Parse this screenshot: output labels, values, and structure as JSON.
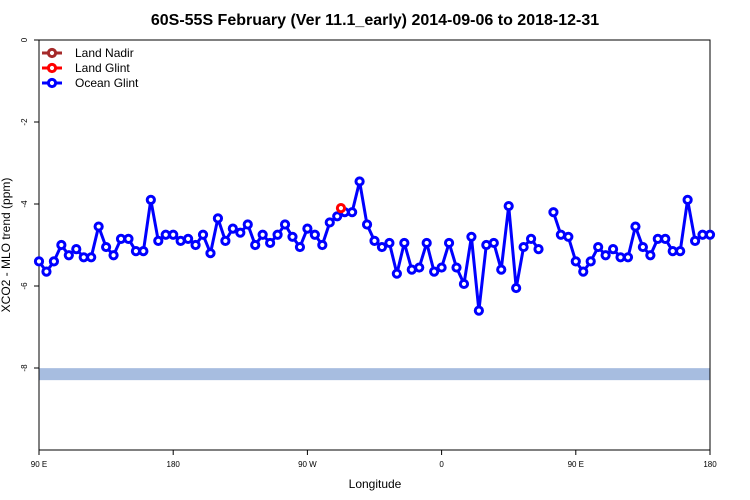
{
  "chart_data": {
    "type": "line",
    "title": "60S-55S February (Ver 11.1_early)   2014-09-06 to 2018-12-31",
    "xlabel": "Longitude",
    "ylabel": "XCO2 - MLO trend (ppm)",
    "xlim": [
      90,
      450
    ],
    "ylim": [
      -10,
      0
    ],
    "x_ticks": [
      {
        "value": 90,
        "label": "90 E"
      },
      {
        "value": 180,
        "label": "180"
      },
      {
        "value": 270,
        "label": "90 W"
      },
      {
        "value": 360,
        "label": "0"
      },
      {
        "value": 450,
        "label": "90 E"
      },
      {
        "value": 540,
        "label": "180"
      }
    ],
    "y_ticks": [
      {
        "value": 0,
        "label": "0"
      },
      {
        "value": -2,
        "label": "-2"
      },
      {
        "value": -4,
        "label": "-4"
      },
      {
        "value": -6,
        "label": "-6"
      },
      {
        "value": -8,
        "label": "-8"
      }
    ],
    "legend_position": "top-left",
    "reference_band": {
      "y": -8.15,
      "color": "#a7bde0"
    },
    "series": [
      {
        "name": "Land Nadir",
        "color": "#a52a2a",
        "segments": []
      },
      {
        "name": "Land Glint",
        "color": "#ff0000",
        "segments": [
          [
            [
              252,
              -4.1
            ]
          ]
        ]
      },
      {
        "name": "Ocean Glint",
        "color": "#0000ff",
        "segments": [
          [
            [
              90,
              -5.4
            ],
            [
              94,
              -5.65
            ],
            [
              98,
              -5.4
            ],
            [
              102,
              -5.0
            ],
            [
              106,
              -5.25
            ],
            [
              110,
              -5.1
            ],
            [
              114,
              -5.3
            ],
            [
              118,
              -5.3
            ],
            [
              122,
              -4.55
            ],
            [
              126,
              -5.05
            ],
            [
              130,
              -5.25
            ],
            [
              134,
              -4.85
            ],
            [
              138,
              -4.85
            ],
            [
              142,
              -5.15
            ],
            [
              146,
              -5.15
            ],
            [
              150,
              -3.9
            ],
            [
              154,
              -4.9
            ],
            [
              158,
              -4.75
            ],
            [
              162,
              -4.75
            ],
            [
              166,
              -4.9
            ],
            [
              170,
              -4.85
            ],
            [
              174,
              -5.0
            ],
            [
              178,
              -4.75
            ],
            [
              182,
              -5.2
            ],
            [
              186,
              -4.35
            ],
            [
              190,
              -4.9
            ],
            [
              194,
              -4.6
            ],
            [
              198,
              -4.7
            ],
            [
              202,
              -4.5
            ],
            [
              206,
              -5.0
            ],
            [
              210,
              -4.75
            ],
            [
              214,
              -4.95
            ],
            [
              218,
              -4.75
            ],
            [
              222,
              -4.5
            ],
            [
              226,
              -4.8
            ],
            [
              230,
              -5.05
            ],
            [
              234,
              -4.6
            ],
            [
              238,
              -4.75
            ],
            [
              242,
              -5.0
            ],
            [
              246,
              -4.45
            ],
            [
              250,
              -4.3
            ],
            [
              254,
              -4.2
            ],
            [
              258,
              -4.2
            ],
            [
              262,
              -3.45
            ],
            [
              266,
              -4.5
            ],
            [
              270,
              -4.9
            ],
            [
              274,
              -5.05
            ],
            [
              278,
              -4.95
            ],
            [
              282,
              -5.7
            ],
            [
              286,
              -4.95
            ],
            [
              290,
              -5.6
            ],
            [
              294,
              -5.55
            ],
            [
              298,
              -4.95
            ],
            [
              302,
              -5.65
            ],
            [
              306,
              -5.55
            ],
            [
              310,
              -4.95
            ],
            [
              314,
              -5.55
            ],
            [
              318,
              -5.95
            ],
            [
              322,
              -4.8
            ],
            [
              326,
              -6.6
            ],
            [
              330,
              -5.0
            ],
            [
              334,
              -4.95
            ],
            [
              338,
              -5.6
            ],
            [
              342,
              -4.05
            ],
            [
              346,
              -6.05
            ],
            [
              350,
              -5.05
            ],
            [
              354,
              -4.85
            ],
            [
              358,
              -5.1
            ]
          ],
          [
            [
              366,
              -4.2
            ],
            [
              370,
              -4.75
            ],
            [
              374,
              -4.8
            ],
            [
              378,
              -5.4
            ],
            [
              382,
              -5.65
            ],
            [
              386,
              -5.4
            ],
            [
              390,
              -5.05
            ],
            [
              394,
              -5.25
            ],
            [
              398,
              -5.1
            ],
            [
              402,
              -5.3
            ],
            [
              406,
              -5.3
            ],
            [
              410,
              -4.55
            ],
            [
              414,
              -5.05
            ],
            [
              418,
              -5.25
            ],
            [
              422,
              -4.85
            ],
            [
              426,
              -4.85
            ],
            [
              430,
              -5.15
            ],
            [
              434,
              -5.15
            ],
            [
              438,
              -3.9
            ],
            [
              442,
              -4.9
            ],
            [
              446,
              -4.75
            ],
            [
              450,
              -4.75
            ]
          ]
        ]
      }
    ]
  }
}
